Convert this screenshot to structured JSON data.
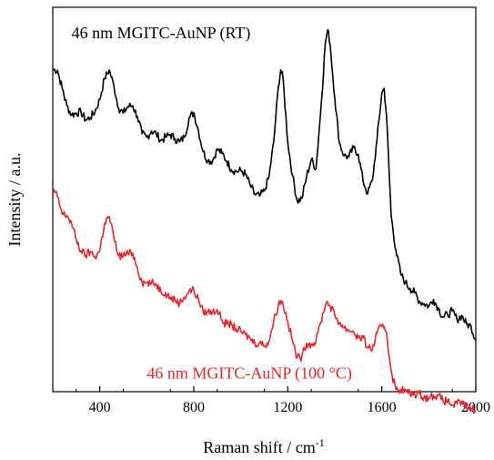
{
  "chart_data": {
    "type": "line",
    "xlabel": "Raman shift / cm",
    "xlabel_superscript": "-1",
    "ylabel": "Intensity / a.u.",
    "xlim": [
      200,
      2000
    ],
    "ylim": [
      0,
      1
    ],
    "x_ticks": [
      400,
      800,
      1200,
      1600,
      2000
    ],
    "y_ticks_labeled": false,
    "grid": false,
    "series": [
      {
        "name": "46 nm MGITC-AuNP (RT)",
        "color": "#000000",
        "points": [
          [
            200,
            0.838
          ],
          [
            220,
            0.836
          ],
          [
            240,
            0.79
          ],
          [
            260,
            0.744
          ],
          [
            280,
            0.72
          ],
          [
            300,
            0.725
          ],
          [
            320,
            0.728
          ],
          [
            340,
            0.707
          ],
          [
            360,
            0.713
          ],
          [
            380,
            0.729
          ],
          [
            400,
            0.76
          ],
          [
            420,
            0.815
          ],
          [
            440,
            0.837
          ],
          [
            460,
            0.796
          ],
          [
            480,
            0.738
          ],
          [
            500,
            0.725
          ],
          [
            520,
            0.742
          ],
          [
            540,
            0.744
          ],
          [
            560,
            0.716
          ],
          [
            580,
            0.671
          ],
          [
            600,
            0.662
          ],
          [
            620,
            0.678
          ],
          [
            640,
            0.671
          ],
          [
            660,
            0.653
          ],
          [
            680,
            0.662
          ],
          [
            700,
            0.669
          ],
          [
            720,
            0.658
          ],
          [
            740,
            0.65
          ],
          [
            760,
            0.662
          ],
          [
            780,
            0.712
          ],
          [
            800,
            0.726
          ],
          [
            820,
            0.679
          ],
          [
            840,
            0.624
          ],
          [
            860,
            0.601
          ],
          [
            880,
            0.601
          ],
          [
            900,
            0.631
          ],
          [
            920,
            0.62
          ],
          [
            940,
            0.6
          ],
          [
            960,
            0.578
          ],
          [
            980,
            0.573
          ],
          [
            1000,
            0.575
          ],
          [
            1020,
            0.566
          ],
          [
            1040,
            0.537
          ],
          [
            1060,
            0.513
          ],
          [
            1080,
            0.509
          ],
          [
            1100,
            0.522
          ],
          [
            1120,
            0.559
          ],
          [
            1140,
            0.649
          ],
          [
            1160,
            0.795
          ],
          [
            1170,
            0.837
          ],
          [
            1180,
            0.814
          ],
          [
            1200,
            0.649
          ],
          [
            1220,
            0.562
          ],
          [
            1240,
            0.496
          ],
          [
            1260,
            0.503
          ],
          [
            1280,
            0.56
          ],
          [
            1300,
            0.604
          ],
          [
            1320,
            0.58
          ],
          [
            1340,
            0.729
          ],
          [
            1360,
            0.909
          ],
          [
            1370,
            0.942
          ],
          [
            1380,
            0.905
          ],
          [
            1400,
            0.764
          ],
          [
            1420,
            0.646
          ],
          [
            1440,
            0.614
          ],
          [
            1460,
            0.611
          ],
          [
            1480,
            0.635
          ],
          [
            1500,
            0.618
          ],
          [
            1520,
            0.549
          ],
          [
            1540,
            0.515
          ],
          [
            1560,
            0.55
          ],
          [
            1580,
            0.657
          ],
          [
            1600,
            0.776
          ],
          [
            1610,
            0.789
          ],
          [
            1620,
            0.718
          ],
          [
            1640,
            0.457
          ],
          [
            1660,
            0.367
          ],
          [
            1680,
            0.308
          ],
          [
            1700,
            0.284
          ],
          [
            1720,
            0.269
          ],
          [
            1740,
            0.257
          ],
          [
            1760,
            0.235
          ],
          [
            1780,
            0.229
          ],
          [
            1800,
            0.223
          ],
          [
            1820,
            0.24
          ],
          [
            1840,
            0.218
          ],
          [
            1860,
            0.194
          ],
          [
            1880,
            0.2
          ],
          [
            1900,
            0.21
          ],
          [
            1920,
            0.188
          ],
          [
            1940,
            0.198
          ],
          [
            1960,
            0.176
          ],
          [
            1980,
            0.17
          ],
          [
            2000,
            0.134
          ]
        ]
      },
      {
        "name": "46 nm MGITC-AuNP (100 °C)",
        "color": "#e8262d",
        "points": [
          [
            200,
            0.526
          ],
          [
            220,
            0.507
          ],
          [
            240,
            0.462
          ],
          [
            260,
            0.459
          ],
          [
            280,
            0.437
          ],
          [
            300,
            0.396
          ],
          [
            320,
            0.366
          ],
          [
            340,
            0.355
          ],
          [
            360,
            0.364
          ],
          [
            380,
            0.351
          ],
          [
            400,
            0.367
          ],
          [
            420,
            0.438
          ],
          [
            440,
            0.456
          ],
          [
            460,
            0.401
          ],
          [
            480,
            0.353
          ],
          [
            500,
            0.354
          ],
          [
            520,
            0.359
          ],
          [
            540,
            0.361
          ],
          [
            560,
            0.323
          ],
          [
            580,
            0.285
          ],
          [
            600,
            0.283
          ],
          [
            620,
            0.282
          ],
          [
            640,
            0.28
          ],
          [
            660,
            0.262
          ],
          [
            680,
            0.258
          ],
          [
            700,
            0.245
          ],
          [
            720,
            0.239
          ],
          [
            740,
            0.23
          ],
          [
            760,
            0.246
          ],
          [
            780,
            0.262
          ],
          [
            800,
            0.264
          ],
          [
            820,
            0.239
          ],
          [
            840,
            0.208
          ],
          [
            860,
            0.208
          ],
          [
            880,
            0.207
          ],
          [
            900,
            0.214
          ],
          [
            920,
            0.186
          ],
          [
            940,
            0.175
          ],
          [
            960,
            0.175
          ],
          [
            980,
            0.163
          ],
          [
            1000,
            0.157
          ],
          [
            1020,
            0.148
          ],
          [
            1040,
            0.139
          ],
          [
            1060,
            0.126
          ],
          [
            1080,
            0.128
          ],
          [
            1100,
            0.12
          ],
          [
            1120,
            0.131
          ],
          [
            1140,
            0.184
          ],
          [
            1160,
            0.226
          ],
          [
            1170,
            0.237
          ],
          [
            1180,
            0.227
          ],
          [
            1200,
            0.184
          ],
          [
            1220,
            0.133
          ],
          [
            1240,
            0.088
          ],
          [
            1260,
            0.091
          ],
          [
            1280,
            0.126
          ],
          [
            1300,
            0.123
          ],
          [
            1320,
            0.131
          ],
          [
            1340,
            0.181
          ],
          [
            1360,
            0.227
          ],
          [
            1370,
            0.232
          ],
          [
            1380,
            0.224
          ],
          [
            1400,
            0.199
          ],
          [
            1420,
            0.18
          ],
          [
            1440,
            0.166
          ],
          [
            1460,
            0.16
          ],
          [
            1480,
            0.156
          ],
          [
            1500,
            0.14
          ],
          [
            1520,
            0.139
          ],
          [
            1540,
            0.116
          ],
          [
            1560,
            0.11
          ],
          [
            1580,
            0.152
          ],
          [
            1600,
            0.171
          ],
          [
            1610,
            0.17
          ],
          [
            1620,
            0.154
          ],
          [
            1640,
            0.053
          ],
          [
            1660,
            0.006
          ],
          [
            1680,
            0.006
          ],
          [
            1700,
            0.001
          ],
          [
            1720,
            -0.005
          ],
          [
            1740,
            -0.006
          ],
          [
            1760,
            -0.005
          ],
          [
            1780,
            -0.013
          ],
          [
            1800,
            -0.017
          ],
          [
            1820,
            -0.009
          ],
          [
            1840,
            -0.011
          ],
          [
            1860,
            -0.023
          ],
          [
            1880,
            -0.025
          ],
          [
            1900,
            -0.035
          ],
          [
            1920,
            -0.032
          ],
          [
            1940,
            -0.027
          ],
          [
            1960,
            -0.041
          ],
          [
            1980,
            -0.043
          ],
          [
            2000,
            -0.049
          ]
        ]
      }
    ],
    "annotations": [
      {
        "text": "46 nm MGITC-AuNP (RT)",
        "color": "#000000",
        "x": 280,
        "y": 0.99
      },
      {
        "text": "46 nm MGITC-AuNP (100 °C)",
        "color": "#e8262d",
        "x": 600,
        "y": 0.03
      }
    ]
  }
}
